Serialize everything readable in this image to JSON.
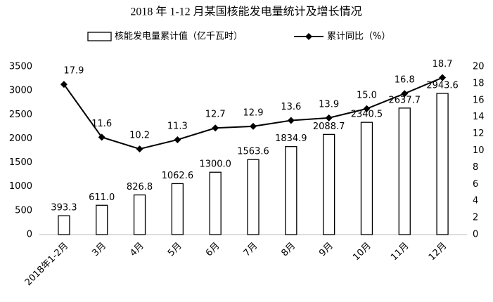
{
  "chart_data": {
    "type": "combo",
    "title": "2018 年 1-12 月某国核能发电量统计及增长情况",
    "categories": [
      "2018年1-2月",
      "3月",
      "4月",
      "5月",
      "6月",
      "7月",
      "8月",
      "9月",
      "10月",
      "11月",
      "12月"
    ],
    "series": [
      {
        "name": "核能发电量累计值（亿千瓦时）",
        "type": "bar",
        "color": "#000000",
        "values": [
          393.3,
          611.0,
          826.8,
          1062.6,
          1300.0,
          1563.6,
          1834.9,
          2088.7,
          2340.5,
          2637.7,
          2943.6
        ],
        "value_labels": [
          "393.3",
          "611.0",
          "826.8",
          "1062.6",
          "1300.0",
          "1563.6",
          "1834.9",
          "2088.7",
          "2340.5",
          "2637.7",
          "2943.6"
        ]
      },
      {
        "name": "累计同比（%）",
        "type": "line",
        "axis": "y2",
        "color": "#000000",
        "values": [
          17.9,
          11.6,
          10.2,
          11.3,
          12.7,
          12.9,
          13.6,
          13.9,
          15.0,
          16.8,
          18.7
        ],
        "value_labels": [
          "17.9",
          "11.6",
          "10.2",
          "11.3",
          "12.7",
          "12.9",
          "13.6",
          "13.9",
          "15.0",
          "16.8",
          "18.7"
        ]
      }
    ],
    "ylim": [
      0,
      3500
    ],
    "yticks": [
      0,
      500,
      1000,
      1500,
      2000,
      2500,
      3000,
      3500
    ],
    "y2lim": [
      0,
      20
    ],
    "y2ticks": [
      0,
      2,
      4,
      6,
      8,
      10,
      12,
      14,
      16,
      18,
      20
    ],
    "grid": false,
    "legend": "top"
  }
}
